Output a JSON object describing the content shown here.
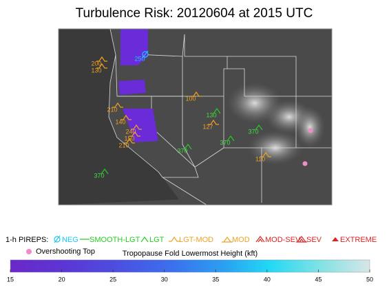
{
  "title": "Turbulence Risk: 20120604 at 2015 UTC",
  "pireps": [
    {
      "kind": "NEG",
      "label": 250
    },
    {
      "kind": "LGT-MOD",
      "label": 200
    },
    {
      "kind": "LGT-MOD",
      "label": 130
    },
    {
      "kind": "LGT-MOD",
      "label": 100
    },
    {
      "kind": "LGT-MOD",
      "label": 210
    },
    {
      "kind": "LGT-MOD",
      "label": 140
    },
    {
      "kind": "LGT-MOD",
      "label": 240
    },
    {
      "kind": "LGT-MOD",
      "label": 150
    },
    {
      "kind": "LGT-MOD",
      "label": 210
    },
    {
      "kind": "LGT",
      "label": 130
    },
    {
      "kind": "LGT-MOD",
      "label": 127
    },
    {
      "kind": "LGT",
      "label": 370
    },
    {
      "kind": "LGT",
      "label": 370
    },
    {
      "kind": "LGT",
      "label": 370
    },
    {
      "kind": "LGT-MOD",
      "label": 110
    },
    {
      "kind": "LGT",
      "label": 370
    }
  ],
  "legend": {
    "title": "1-h PIREPS:",
    "items": [
      "NEG",
      "SMOOTH-LGT",
      "LGT",
      "LGT-MOD",
      "MOD",
      "MOD-SEV",
      "SEV",
      "EXTREME"
    ],
    "overshooting": "Overshooting Top"
  },
  "colorbar": {
    "title": "Tropopause Fold Lowermost Height (kft)",
    "range": [
      15,
      50
    ],
    "ticks": [
      15,
      20,
      25,
      30,
      35,
      40,
      45,
      50
    ]
  }
}
